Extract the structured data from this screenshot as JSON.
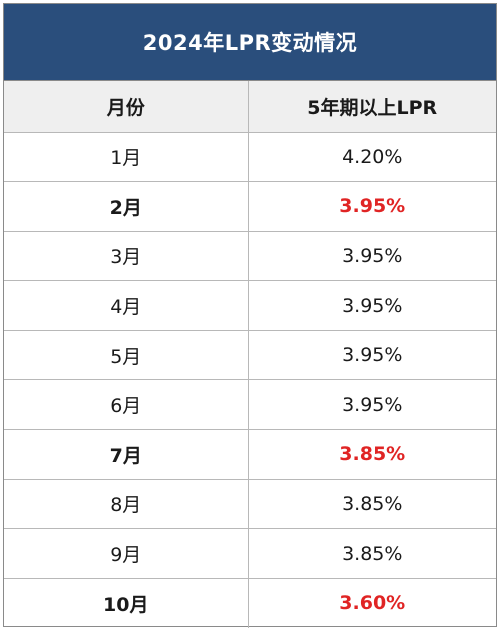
{
  "title": "2024年LPR变动情况",
  "columns": [
    "月份",
    "5年期以上LPR"
  ],
  "rows": [
    {
      "month": "1月",
      "rate": "4.20%",
      "highlight": false
    },
    {
      "month": "2月",
      "rate": "3.95%",
      "highlight": true
    },
    {
      "month": "3月",
      "rate": "3.95%",
      "highlight": false
    },
    {
      "month": "4月",
      "rate": "3.95%",
      "highlight": false
    },
    {
      "month": "5月",
      "rate": "3.95%",
      "highlight": false
    },
    {
      "month": "6月",
      "rate": "3.95%",
      "highlight": false
    },
    {
      "month": "7月",
      "rate": "3.85%",
      "highlight": true
    },
    {
      "month": "8月",
      "rate": "3.85%",
      "highlight": false
    },
    {
      "month": "9月",
      "rate": "3.85%",
      "highlight": false
    },
    {
      "month": "10月",
      "rate": "3.60%",
      "highlight": true
    }
  ],
  "colors": {
    "header_bg": "#2a4e7c",
    "column_header_bg": "#efefef",
    "highlight_text": "#e02424"
  },
  "chart_data": {
    "type": "table",
    "title": "2024年LPR变动情况",
    "columns": [
      "月份",
      "5年期以上LPR"
    ],
    "categories": [
      "1月",
      "2月",
      "3月",
      "4月",
      "5月",
      "6月",
      "7月",
      "8月",
      "9月",
      "10月"
    ],
    "values": [
      4.2,
      3.95,
      3.95,
      3.95,
      3.95,
      3.95,
      3.85,
      3.85,
      3.85,
      3.6
    ],
    "unit": "%",
    "highlighted_categories": [
      "2月",
      "7月",
      "10月"
    ]
  }
}
